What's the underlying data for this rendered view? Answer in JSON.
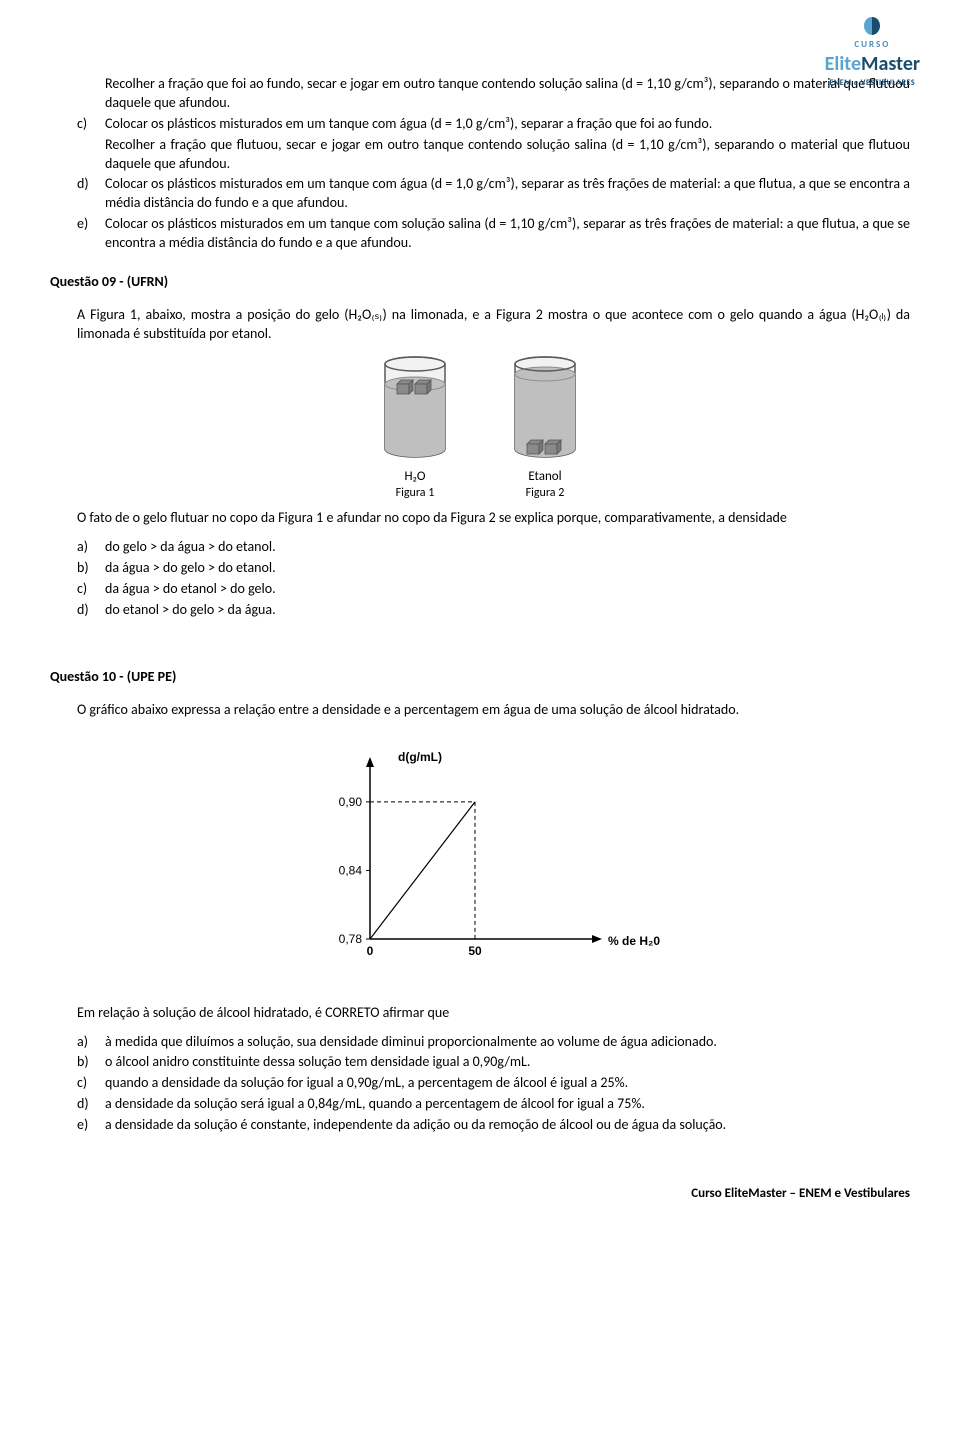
{
  "logo": {
    "curso": "CURSO",
    "elite": "Elite",
    "master": "Master",
    "sub": "ENEM e VESTIBULARES",
    "colors": {
      "light": "#5aa5d0",
      "dark": "#1a4d6d"
    }
  },
  "topList": {
    "preB": "Recolher a fração que foi ao fundo, secar e jogar em outro tanque contendo solução salina (d = 1,10 g/cm³), separando o material que flutuou daquele que afundou.",
    "items": [
      {
        "marker": "c)",
        "text": "Colocar os plásticos misturados em um tanque com água (d = 1,0 g/cm³), separar a fração que foi ao fundo.",
        "cont": "Recolher a fração que flutuou, secar e jogar em outro tanque contendo solução salina (d = 1,10 g/cm³), separando o material que flutuou daquele que afundou."
      },
      {
        "marker": "d)",
        "text": "Colocar os plásticos misturados em um tanque com água (d = 1,0 g/cm³), separar as três frações de material: a que flutua, a que se encontra a média distância do fundo e a que afundou."
      },
      {
        "marker": "e)",
        "text": "Colocar os plásticos misturados em um tanque com solução salina (d = 1,10 g/cm³), separar as três frações de material: a que flutua, a que se encontra a média distância do fundo e a que afundou."
      }
    ]
  },
  "q09": {
    "header": "Questão 09 - (UFRN)",
    "intro": "A Figura 1, abaixo, mostra a posição do gelo (H₂O₍ₛ₎) na limonada, e a Figura 2 mostra o que acontece com o gelo quando a água (H₂O₍ₗ₎) da limonada é substituída por etanol.",
    "fig1": {
      "fluid": "H₂O",
      "caption": "Figura 1"
    },
    "fig2": {
      "fluid": "Etanol",
      "caption": "Figura 2"
    },
    "beakerStyle": {
      "glassFill": "#f2f2f2",
      "liquidFill": "#bfbfbf",
      "cubeFill": "#8a8a8a",
      "cubeStroke": "#555",
      "stroke": "#5a5a5a"
    },
    "after": "O fato de o gelo flutuar no copo da Figura 1 e afundar no copo da Figura 2 se explica porque, comparativamente, a densidade",
    "opts": [
      {
        "marker": "a)",
        "text": "do gelo > da água > do etanol."
      },
      {
        "marker": "b)",
        "text": "da água > do gelo > do etanol."
      },
      {
        "marker": "c)",
        "text": "da água > do etanol > do gelo."
      },
      {
        "marker": "d)",
        "text": "do etanol > do gelo > da água."
      }
    ]
  },
  "q10": {
    "header": "Questão 10 - (UPE PE)",
    "intro": "O gráfico abaixo expressa a relação entre a densidade e a percentagem em água de uma solução de álcool hidratado.",
    "chart": {
      "type": "line",
      "yLabel": "d(g/mL)",
      "xLabel": "% de H₂0",
      "yTicks": [
        "0,90",
        "0,84",
        "0,78"
      ],
      "yTickValues": [
        0.9,
        0.84,
        0.78
      ],
      "xTicks": [
        "0",
        "50"
      ],
      "xTickValues": [
        0,
        50
      ],
      "xlim": [
        0,
        100
      ],
      "ylim": [
        0.78,
        0.92
      ],
      "line": {
        "x": [
          0,
          50
        ],
        "y": [
          0.78,
          0.9
        ]
      },
      "axisColor": "#000",
      "lineColor": "#000",
      "dashColor": "#000",
      "lineWidth": 1.2,
      "fontSize": 12
    },
    "after": "Em relação à solução de álcool hidratado, é CORRETO afirmar que",
    "opts": [
      {
        "marker": "a)",
        "text": "à medida que diluímos a solução, sua densidade diminui proporcionalmente ao volume de água adicionado."
      },
      {
        "marker": "b)",
        "text": "o álcool anidro constituinte dessa solução tem densidade igual a 0,90g/mL."
      },
      {
        "marker": "c)",
        "text": "quando a densidade da solução for igual a 0,90g/mL, a percentagem de álcool é igual a 25%."
      },
      {
        "marker": "d)",
        "text": "a densidade da solução será igual a 0,84g/mL, quando a percentagem de álcool for igual a 75%."
      },
      {
        "marker": "e)",
        "text": "a densidade da solução é constante, independente da adição ou da remoção de álcool ou de água da solução."
      }
    ]
  },
  "footer": "Curso EliteMaster – ENEM e Vestibulares"
}
